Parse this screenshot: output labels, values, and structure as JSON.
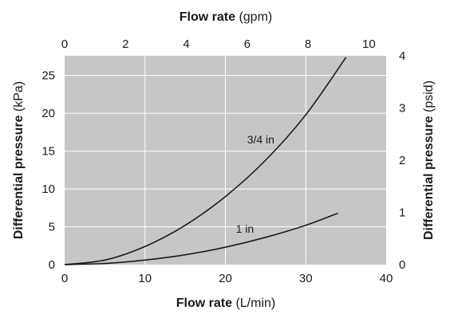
{
  "chart_data": {
    "type": "line",
    "background": "#c6c6c6",
    "grid_color": "#ffffff",
    "line_color": "#1a1a1a",
    "grid": true,
    "x_bottom": {
      "label_bold": "Flow rate",
      "label_unit": "(L/min)",
      "range": [
        0,
        40
      ],
      "ticks": [
        0,
        10,
        20,
        30,
        40
      ]
    },
    "x_top": {
      "label_bold": "Flow rate",
      "label_unit": "(gpm)",
      "range": [
        0,
        10.567
      ],
      "ticks": [
        0,
        2,
        4,
        6,
        8,
        10
      ]
    },
    "y_left": {
      "label_bold": "Differential pressure",
      "label_unit": "(kPa)",
      "range": [
        0,
        27.6
      ],
      "ticks": [
        0,
        5,
        10,
        15,
        20,
        25
      ]
    },
    "y_right": {
      "label_bold": "Differential pressure",
      "label_unit": "(psid)",
      "range": [
        0,
        4.0
      ],
      "ticks": [
        0,
        1,
        2,
        3,
        4
      ]
    },
    "series": [
      {
        "name": "3/4 in",
        "label_at": [
          22.7,
          16.0
        ],
        "x": [
          0,
          5,
          10,
          15,
          20,
          25,
          30,
          35
        ],
        "y": [
          0,
          0.6,
          2.4,
          5.2,
          9.0,
          13.8,
          19.8,
          27.4
        ]
      },
      {
        "name": "1 in",
        "label_at": [
          21.3,
          4.2
        ],
        "x": [
          0,
          5,
          10,
          15,
          20,
          25,
          30,
          34
        ],
        "y": [
          0,
          0.15,
          0.6,
          1.3,
          2.3,
          3.6,
          5.2,
          6.8
        ]
      }
    ]
  }
}
